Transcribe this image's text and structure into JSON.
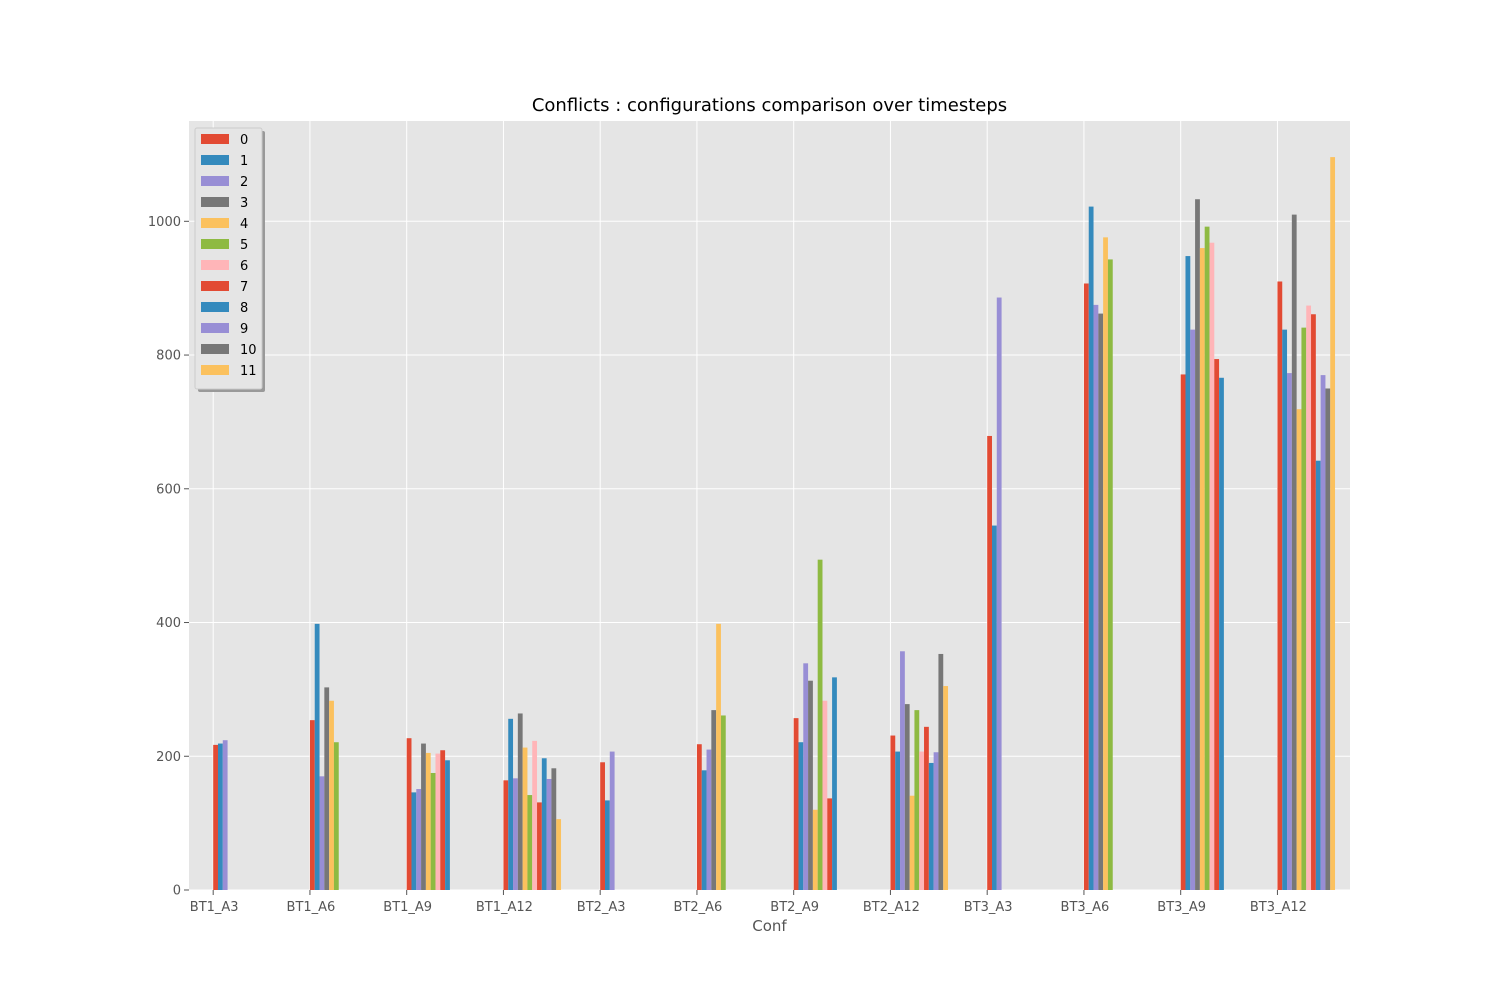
{
  "chart_data": {
    "type": "bar",
    "title": "Conflicts : configurations comparison over timesteps",
    "xlabel": "Conf",
    "ylabel": "",
    "ylim": [
      0,
      1150
    ],
    "yticks": [
      0,
      200,
      400,
      600,
      800,
      1000
    ],
    "grid": true,
    "legend_position": "top-left",
    "categories": [
      "BT1_A3",
      "BT1_A6",
      "BT1_A9",
      "BT1_A12",
      "BT2_A3",
      "BT2_A6",
      "BT2_A9",
      "BT2_A12",
      "BT3_A3",
      "BT3_A6",
      "BT3_A9",
      "BT3_A12"
    ],
    "series": [
      {
        "name": "0",
        "color": "#E24A33",
        "values": [
          217,
          254,
          227,
          164,
          191,
          218,
          257,
          231,
          679,
          907,
          771,
          910
        ]
      },
      {
        "name": "1",
        "color": "#348ABD",
        "values": [
          219,
          398,
          146,
          256,
          134,
          179,
          221,
          207,
          545,
          1022,
          948,
          838
        ]
      },
      {
        "name": "2",
        "color": "#988ED5",
        "values": [
          224,
          170,
          151,
          167,
          207,
          210,
          339,
          357,
          886,
          875,
          838,
          773
        ]
      },
      {
        "name": "3",
        "color": "#777777",
        "values": [
          null,
          303,
          219,
          264,
          null,
          269,
          313,
          278,
          null,
          862,
          1033,
          1010
        ]
      },
      {
        "name": "4",
        "color": "#FBC15E",
        "values": [
          null,
          283,
          205,
          213,
          null,
          398,
          120,
          141,
          null,
          976,
          960,
          719
        ]
      },
      {
        "name": "5",
        "color": "#8EBA42",
        "values": [
          null,
          221,
          175,
          142,
          null,
          261,
          494,
          269,
          null,
          943,
          992,
          841
        ]
      },
      {
        "name": "6",
        "color": "#FFB5B8",
        "values": [
          null,
          null,
          204,
          223,
          null,
          null,
          283,
          207,
          null,
          null,
          968,
          874
        ]
      },
      {
        "name": "7",
        "color": "#E24A33",
        "values": [
          null,
          null,
          209,
          131,
          null,
          null,
          137,
          244,
          null,
          null,
          794,
          861
        ]
      },
      {
        "name": "8",
        "color": "#348ABD",
        "values": [
          null,
          null,
          194,
          197,
          null,
          null,
          318,
          190,
          null,
          null,
          766,
          642
        ]
      },
      {
        "name": "9",
        "color": "#988ED5",
        "values": [
          null,
          null,
          null,
          166,
          null,
          null,
          null,
          206,
          null,
          null,
          null,
          770
        ]
      },
      {
        "name": "10",
        "color": "#777777",
        "values": [
          null,
          null,
          null,
          182,
          null,
          null,
          null,
          353,
          null,
          null,
          null,
          750
        ]
      },
      {
        "name": "11",
        "color": "#FBC15E",
        "values": [
          null,
          null,
          null,
          106,
          null,
          null,
          null,
          305,
          null,
          null,
          null,
          1096
        ]
      }
    ]
  }
}
